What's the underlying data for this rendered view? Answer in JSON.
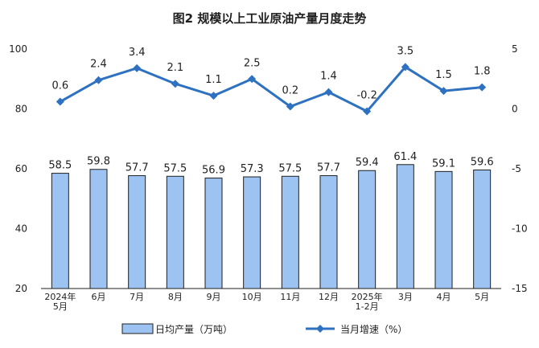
{
  "chart_data": {
    "type": "bar+line",
    "title": "图2 规模以上工业原油产量月度走势",
    "categories": [
      [
        "2024年",
        "5月"
      ],
      [
        "6月"
      ],
      [
        "7月"
      ],
      [
        "8月"
      ],
      [
        "9月"
      ],
      [
        "10月"
      ],
      [
        "11月"
      ],
      [
        "12月"
      ],
      [
        "2025年",
        "1-2月"
      ],
      [
        "3月"
      ],
      [
        "4月"
      ],
      [
        "5月"
      ]
    ],
    "series": [
      {
        "name": "日均产量（万吨）",
        "type": "bar",
        "axis": "left",
        "values": [
          58.5,
          59.8,
          57.7,
          57.5,
          56.9,
          57.3,
          57.5,
          57.7,
          59.4,
          61.4,
          59.1,
          59.6
        ],
        "labels": [
          "58.5",
          "59.8",
          "57.7",
          "57.5",
          "56.9",
          "57.3",
          "57.5",
          "57.7",
          "59.4",
          "61.4",
          "59.1",
          "59.6"
        ]
      },
      {
        "name": "当月增速（%）",
        "type": "line",
        "axis": "right",
        "values": [
          0.6,
          2.4,
          3.4,
          2.1,
          1.1,
          2.5,
          0.2,
          1.4,
          -0.2,
          3.5,
          1.5,
          1.8
        ],
        "labels": [
          "0.6",
          "2.4",
          "3.4",
          "2.1",
          "1.1",
          "2.5",
          "0.2",
          "1.4",
          "-0.2",
          "3.5",
          "1.5",
          "1.8"
        ]
      }
    ],
    "left_axis": {
      "ylim": [
        20,
        100
      ],
      "ticks": [
        20,
        40,
        60,
        80,
        100
      ]
    },
    "right_axis": {
      "ylim": [
        -15,
        5
      ],
      "ticks": [
        -15,
        -10,
        -5,
        0,
        5
      ]
    },
    "legend_position": "bottom",
    "colors": {
      "bar_fill": "#9dc3f2",
      "bar_stroke": "#1f1f1f",
      "line": "#2d71c0",
      "text": "#1f1f1f"
    },
    "icons": {
      "bar_legend": "bar-legend-icon",
      "line_legend": "line-legend-icon"
    }
  }
}
